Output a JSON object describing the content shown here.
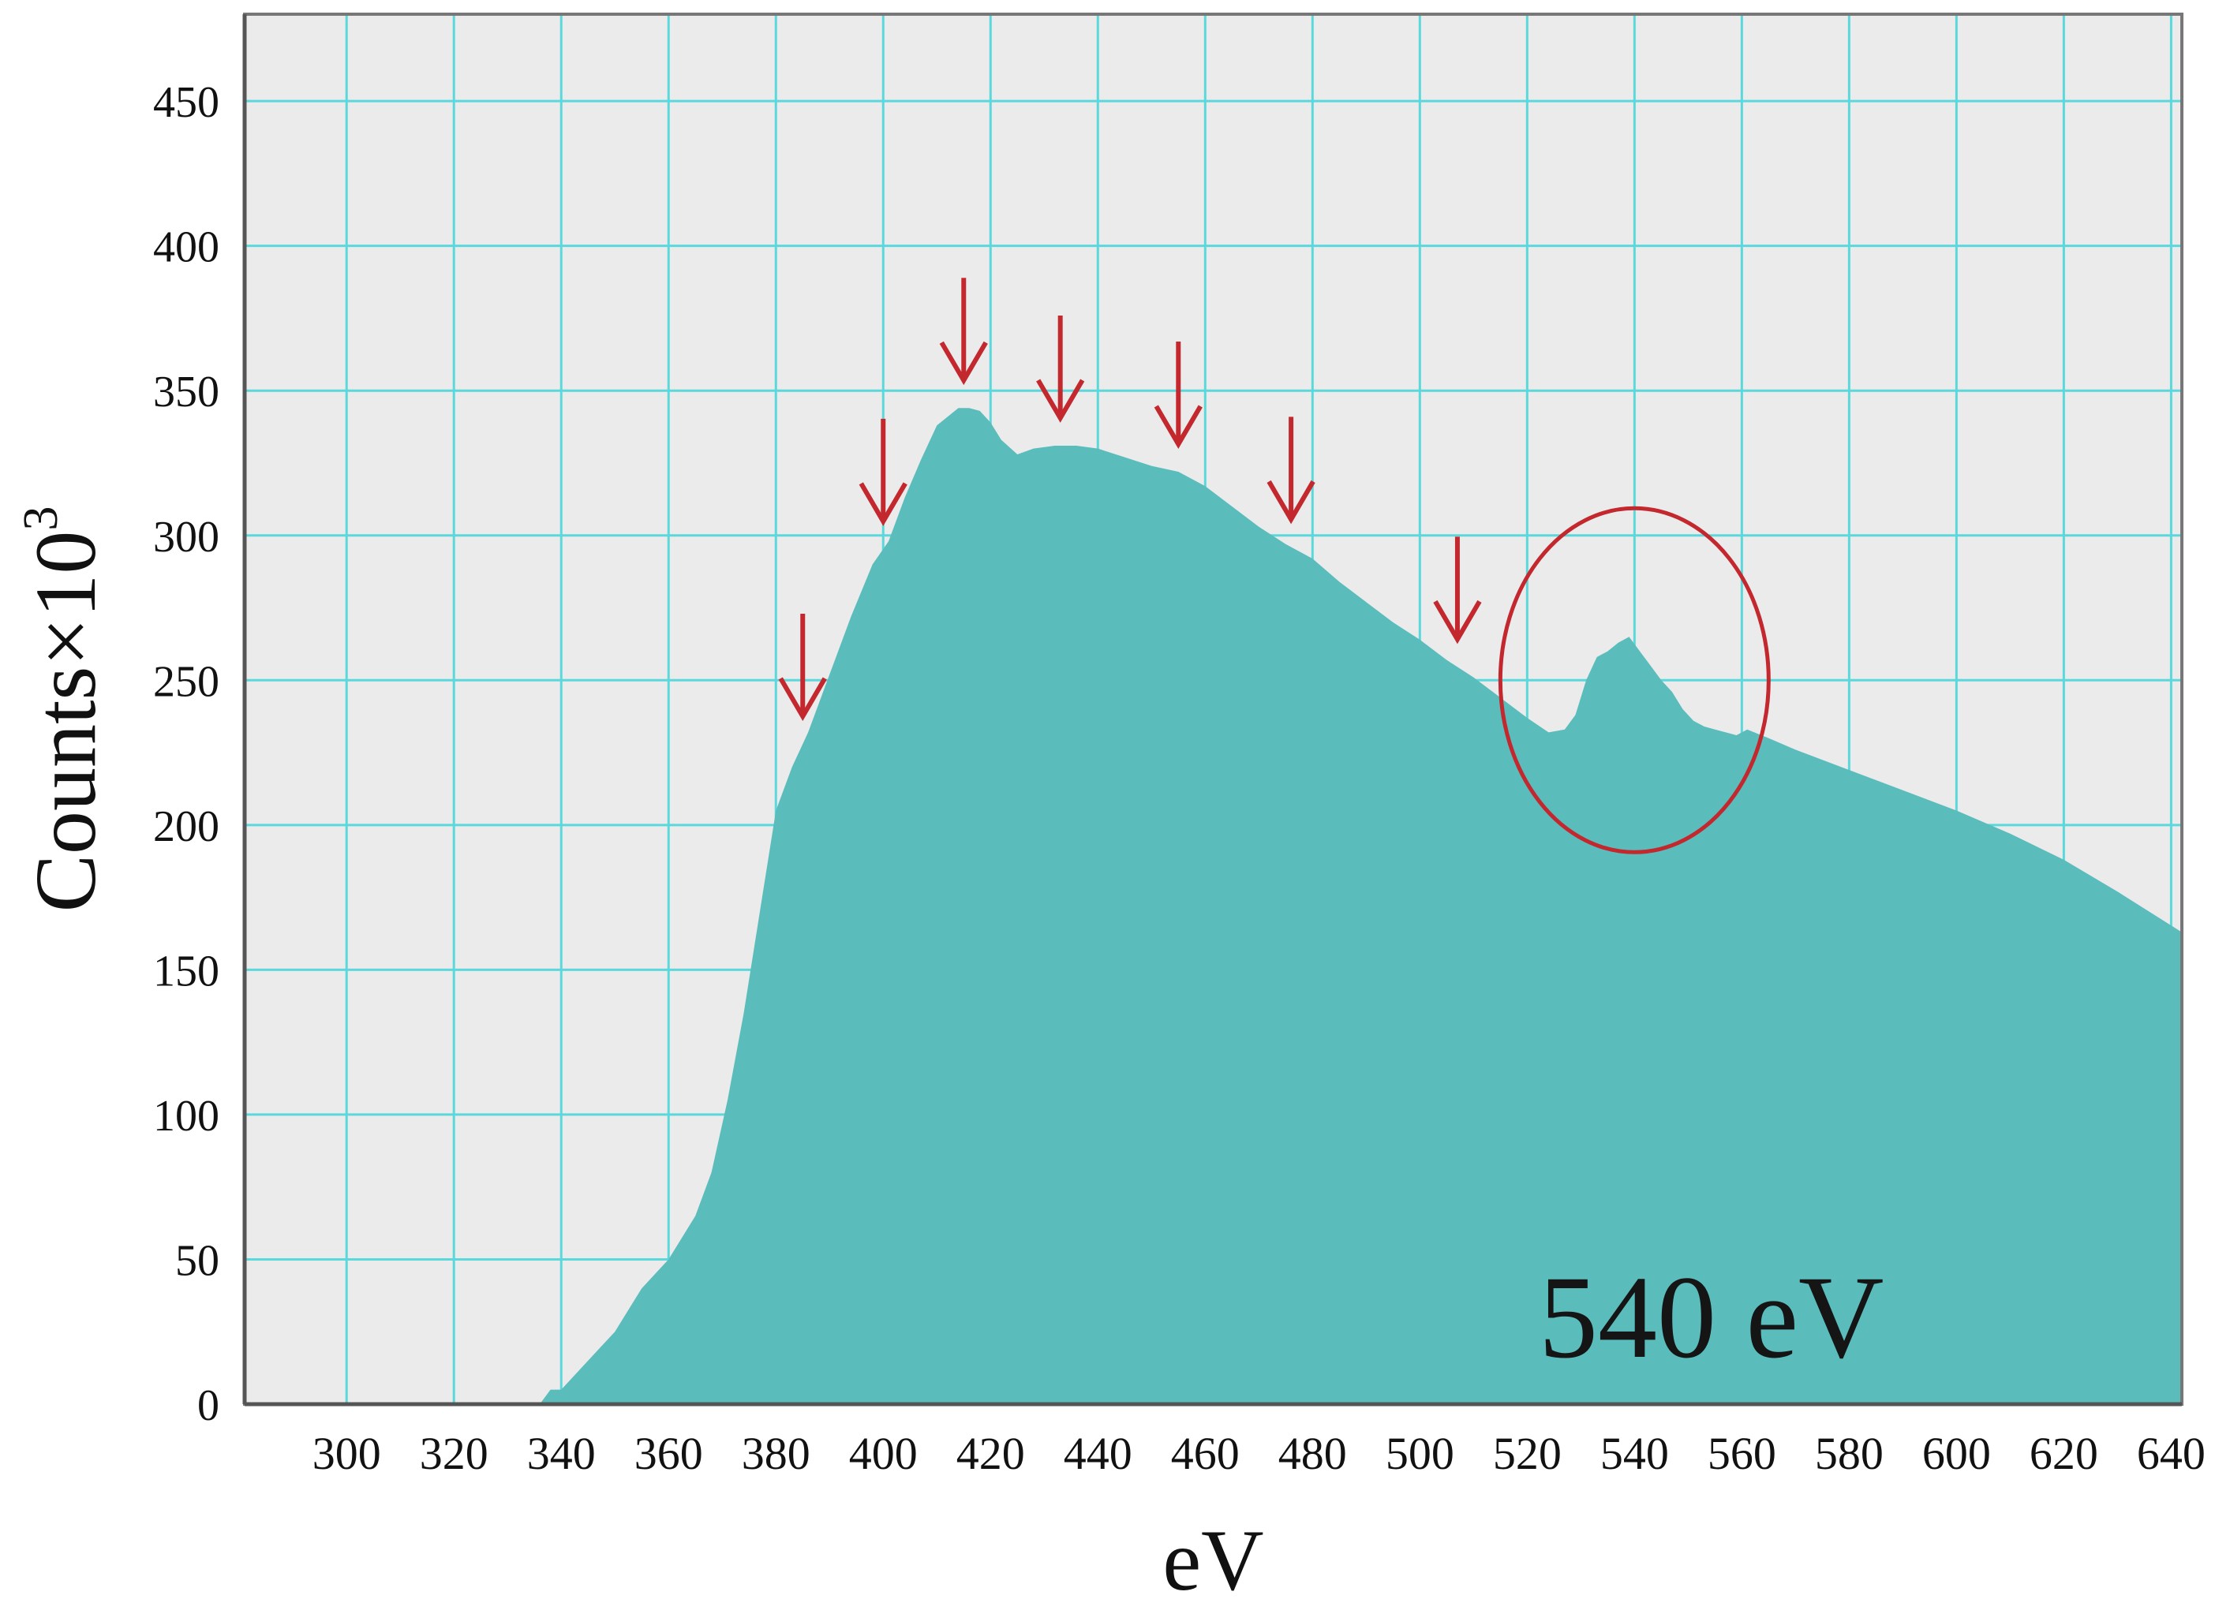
{
  "chart_data": {
    "type": "area",
    "title": "",
    "xlabel": "eV",
    "ylabel": "Counts×10",
    "ylabel_superscript": "3",
    "xlim": [
      281,
      642
    ],
    "ylim": [
      0,
      480
    ],
    "grid": true,
    "x_ticks": [
      300,
      320,
      340,
      360,
      380,
      400,
      420,
      440,
      460,
      480,
      500,
      520,
      540,
      560,
      580,
      600,
      620,
      640
    ],
    "y_ticks": [
      0,
      50,
      100,
      150,
      200,
      250,
      300,
      350,
      400,
      450
    ],
    "series": [
      {
        "x": [
          281,
          300,
          320,
          330,
          334,
          336,
          338,
          340,
          345,
          350,
          355,
          360,
          365,
          368,
          371,
          374,
          377,
          380,
          383,
          386,
          390,
          394,
          398,
          401,
          404,
          407,
          410,
          412,
          414,
          416,
          418,
          420,
          422,
          425,
          428,
          432,
          436,
          440,
          445,
          450,
          455,
          460,
          465,
          470,
          475,
          480,
          485,
          490,
          495,
          500,
          505,
          510,
          515,
          520,
          524,
          527,
          529,
          531,
          533,
          535,
          537,
          539,
          541,
          543,
          545,
          547,
          549,
          551,
          553,
          555,
          557,
          559,
          561,
          565,
          570,
          580,
          590,
          600,
          610,
          620,
          630,
          642
        ],
        "y": [
          0,
          0,
          0,
          0,
          0,
          0,
          5,
          5,
          15,
          25,
          40,
          50,
          65,
          80,
          105,
          135,
          170,
          205,
          220,
          232,
          252,
          272,
          290,
          298,
          313,
          326,
          338,
          341,
          344,
          344,
          343,
          339,
          333,
          328,
          330,
          331,
          331,
          330,
          327,
          324,
          322,
          317,
          310,
          303,
          297,
          292,
          284,
          277,
          270,
          264,
          257,
          251,
          244,
          237,
          232,
          233,
          238,
          250,
          258,
          260,
          263,
          265,
          260,
          255,
          250,
          246,
          240,
          236,
          234,
          233,
          232,
          231,
          233,
          230,
          226,
          219,
          212,
          205,
          197,
          188,
          177,
          163
        ]
      }
    ],
    "annotations": [
      {
        "type": "arrow",
        "x": 385
      },
      {
        "type": "arrow",
        "x": 400
      },
      {
        "type": "arrow",
        "x": 415
      },
      {
        "type": "arrow",
        "x": 433
      },
      {
        "type": "arrow",
        "x": 455
      },
      {
        "type": "arrow",
        "x": 476
      },
      {
        "type": "arrow",
        "x": 507
      },
      {
        "type": "ellipse",
        "center_x": 540,
        "center_y": 250
      }
    ],
    "label": "540 eV",
    "colors": {
      "fill": "#5bbcbc",
      "plot_background": "#ebebeb",
      "grid": "#5ad8dc",
      "annotation": "#c2282d",
      "axis": "#777777"
    }
  }
}
